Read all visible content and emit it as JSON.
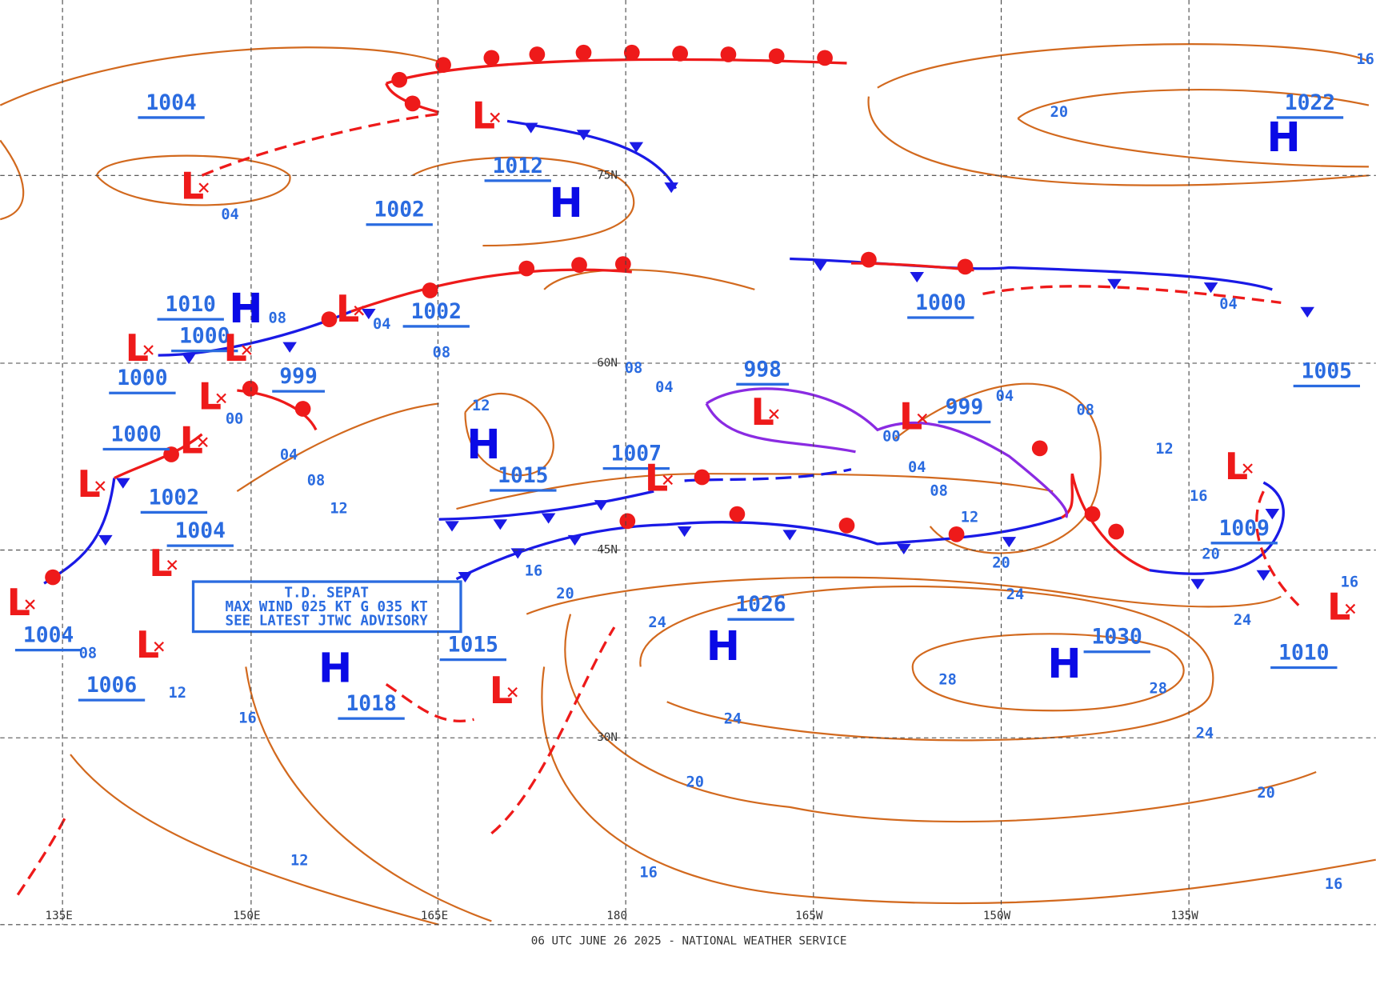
{
  "footer": "06 UTC JUNE 26 2025 - NATIONAL WEATHER SERVICE",
  "advisory": [
    "T.D. SEPAT",
    "MAX WIND 025 KT G 035 KT",
    "SEE LATEST JTWC ADVISORY"
  ],
  "longitudes": [
    "135E",
    "150E",
    "165E",
    "180",
    "165W",
    "150W",
    "135W"
  ],
  "latitudes": [
    "75N",
    "60N",
    "45N",
    "30N"
  ],
  "pressure_labels": [
    "1004",
    "1012",
    "1002",
    "1010",
    "1000",
    "1002",
    "999",
    "1000",
    "1000",
    "1002",
    "1004",
    "1004",
    "1006",
    "1015",
    "1007",
    "998",
    "999",
    "1000",
    "1015",
    "1018",
    "1026",
    "1030",
    "1022",
    "1005",
    "1009",
    "1010"
  ],
  "highs": [
    "H",
    "H",
    "H",
    "H",
    "H",
    "H",
    "H"
  ],
  "lows": [
    "L",
    "L",
    "L",
    "L",
    "L",
    "L",
    "L",
    "L",
    "L",
    "L",
    "L",
    "L",
    "L",
    "L",
    "L",
    "L",
    "L"
  ],
  "isobar_labels": [
    "04",
    "08",
    "04",
    "08",
    "08",
    "04",
    "00",
    "04",
    "12",
    "08",
    "12",
    "04",
    "08",
    "00",
    "04",
    "08",
    "12",
    "12",
    "16",
    "20",
    "16",
    "20",
    "24",
    "20",
    "16",
    "24",
    "28",
    "28",
    "24",
    "24",
    "24",
    "20",
    "20",
    "16",
    "16",
    "12",
    "16",
    "12",
    "08",
    "04",
    "20",
    "16"
  ]
}
